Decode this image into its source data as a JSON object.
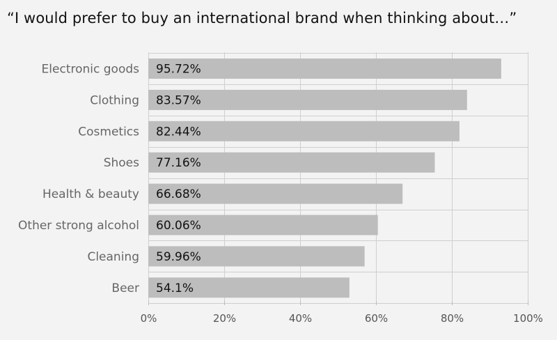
{
  "chart_data": {
    "type": "bar",
    "orientation": "horizontal",
    "title": "“I would prefer to buy an international brand when thinking about…”",
    "categories": [
      "Electronic goods",
      "Clothing",
      "Cosmetics",
      "Shoes",
      "Health & beauty",
      "Other strong alcohol",
      "Cleaning",
      "Beer"
    ],
    "values": [
      95.72,
      83.57,
      82.44,
      77.16,
      66.68,
      60.06,
      59.96,
      54.1
    ],
    "value_labels": [
      "95.72%",
      "83.57%",
      "82.44%",
      "77.16%",
      "66.68%",
      "60.06%",
      "59.96%",
      "54.1%"
    ],
    "bar_lengths": [
      93,
      84,
      82,
      75.5,
      67,
      60.5,
      57,
      53
    ],
    "xlim": [
      0,
      100
    ],
    "xticks": [
      0,
      20,
      40,
      60,
      80,
      100
    ],
    "xtick_labels": [
      "0%",
      "20%",
      "40%",
      "60%",
      "80%",
      "100%"
    ],
    "xlabel": "",
    "ylabel": "",
    "grid": true,
    "legend": "none",
    "colors": {
      "bar": "#bdbdbd",
      "grid": "#cfcfcf",
      "background": "#f3f3f3"
    }
  }
}
